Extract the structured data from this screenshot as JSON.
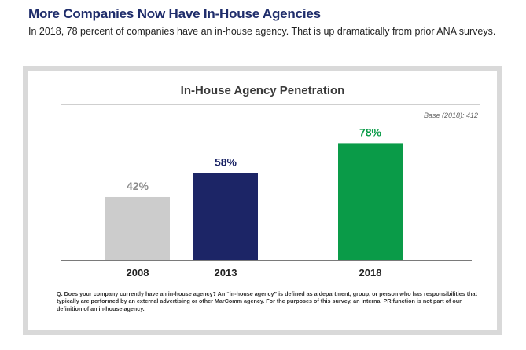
{
  "header": {
    "title": "More Companies Now Have In-House Agencies",
    "subtitle": "In 2018, 78 percent of companies have an in-house agency. That is up dramatically from prior ANA surveys."
  },
  "chart_header": {
    "title": "In-House Agency Penetration",
    "base_note": "Base (2018): 412"
  },
  "footnote": "Q. Does your company currently have an in-house agency? An “in-house agency” is defined as a department, group, or person who has responsibilities that typically are performed by an external advertising or other MarComm agency. For the purposes of this survey, an internal PR function is not part of our definition of an in-house agency.",
  "chart_data": {
    "type": "bar",
    "title": "In-House Agency Penetration",
    "categories": [
      "2008",
      "2013",
      "2018"
    ],
    "values": [
      42,
      58,
      78
    ],
    "value_labels": [
      "42%",
      "58%",
      "78%"
    ],
    "colors": [
      "#cccccc",
      "#1c2566",
      "#0a9b48"
    ],
    "label_colors": [
      "#8c8c8c",
      "#1c2566",
      "#0a9b48"
    ],
    "ylim": [
      0,
      100
    ],
    "xlabel": "",
    "ylabel": "",
    "grid": false
  }
}
